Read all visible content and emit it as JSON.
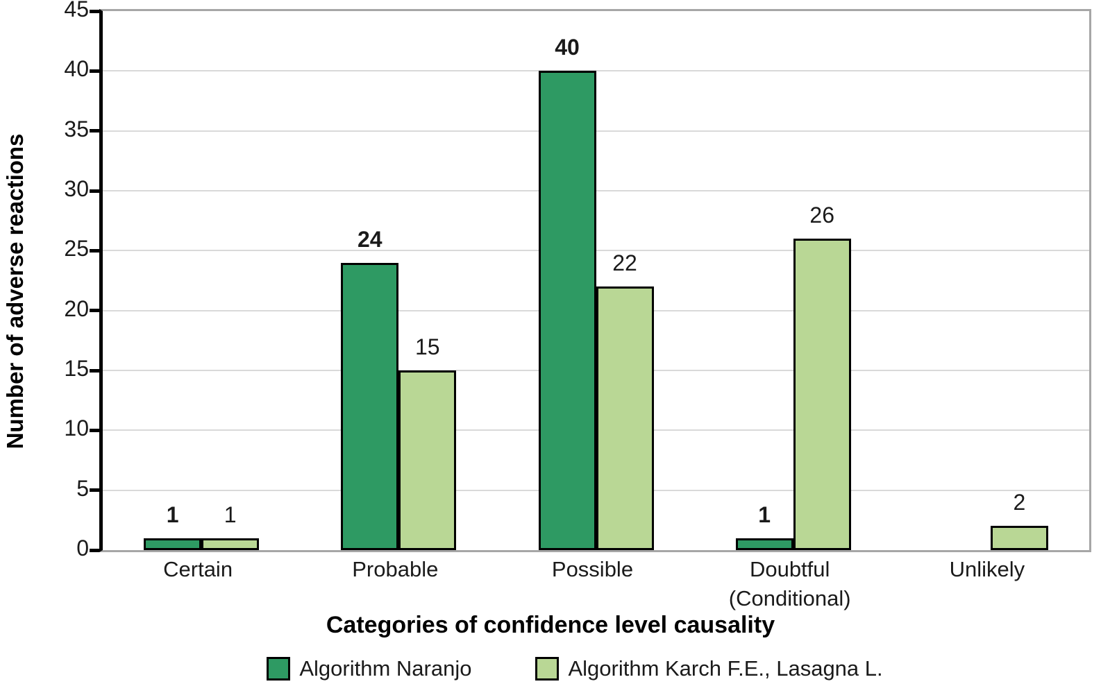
{
  "chart_data": {
    "type": "bar",
    "title": "",
    "xlabel": "Categories of confidence level causality",
    "ylabel": "Number of adverse reactions",
    "categories": [
      "Certain",
      "Probable",
      "Possible",
      "Doubtful\n(Conditional)",
      "Unlikely"
    ],
    "series": [
      {
        "name": "Algorithm Naranjo",
        "color": "#2E9A63",
        "values": [
          1,
          24,
          40,
          1,
          0
        ],
        "value_labels": [
          "1",
          "24",
          "40",
          "1",
          ""
        ],
        "value_labels_bold": true
      },
      {
        "name": "Algorithm Karch F.E., Lasagna L.",
        "color": "#B9D795",
        "values": [
          1,
          15,
          22,
          26,
          2
        ],
        "value_labels": [
          "1",
          "15",
          "22",
          "26",
          "2"
        ],
        "value_labels_bold": false
      }
    ],
    "ylim": [
      0,
      45
    ],
    "yticks": [
      0,
      5,
      10,
      15,
      20,
      25,
      30,
      35,
      40,
      45
    ],
    "grid": true,
    "legend_position": "bottom",
    "show_value_labels": true
  },
  "style": {
    "series_border_color": "#000000",
    "axis_line_color": "#000000",
    "plot_border_color": "#A6A6A6",
    "gridline_color": "#D9D9D9",
    "text_color": "#1A1A1A",
    "background_color": "#FFFFFF"
  }
}
